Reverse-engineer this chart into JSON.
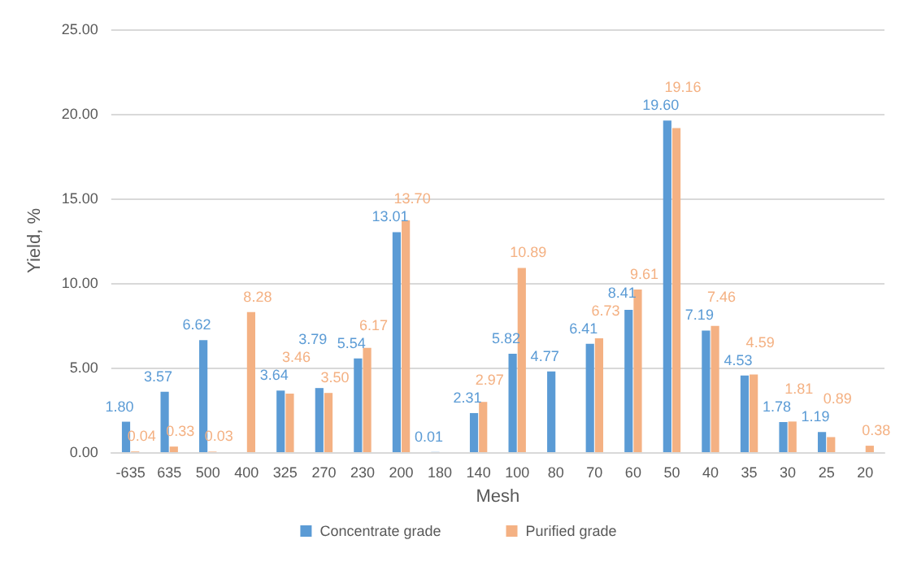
{
  "chart_data": {
    "type": "bar",
    "xlabel": "Mesh",
    "ylabel": "Yield, %",
    "categories": [
      "-635",
      "635",
      "500",
      "400",
      "325",
      "270",
      "230",
      "200",
      "180",
      "140",
      "100",
      "80",
      "70",
      "60",
      "50",
      "40",
      "35",
      "30",
      "25",
      "20"
    ],
    "series": [
      {
        "name": "Concentrate grade",
        "color": "#5b9bd5",
        "values": [
          1.8,
          3.57,
          6.62,
          null,
          3.64,
          3.79,
          5.54,
          13.01,
          0.01,
          2.31,
          5.82,
          4.77,
          6.41,
          8.41,
          19.6,
          7.19,
          4.53,
          1.78,
          1.19,
          null
        ],
        "value_labels": [
          "1.80",
          "3.57",
          "6.62",
          null,
          "3.64",
          "3.79",
          "5.54",
          "13.01",
          "0.01",
          "2.31",
          "5.82",
          "4.77",
          "6.41",
          "8.41",
          "19.60",
          "7.19",
          "4.53",
          "1.78",
          "1.19",
          null
        ]
      },
      {
        "name": "Purified grade",
        "color": "#f4b183",
        "values": [
          0.04,
          0.33,
          0.03,
          8.28,
          3.46,
          3.5,
          6.17,
          13.7,
          null,
          2.97,
          10.89,
          null,
          6.73,
          9.61,
          19.16,
          7.46,
          4.59,
          1.81,
          0.89,
          0.38
        ],
        "value_labels": [
          "0.04",
          "0.33",
          "0.03",
          "8.28",
          "3.46",
          "3.50",
          "6.17",
          "13.70",
          null,
          "2.97",
          "10.89",
          null,
          "6.73",
          "9.61",
          "19.16",
          "7.46",
          "4.59",
          "1.81",
          "0.89",
          "0.38"
        ]
      }
    ],
    "ylim": [
      0,
      25
    ],
    "yticks": [
      {
        "value": 0,
        "label": "0.00"
      },
      {
        "value": 5,
        "label": "5.00"
      },
      {
        "value": 10,
        "label": "10.00"
      },
      {
        "value": 15,
        "label": "15.00"
      },
      {
        "value": 20,
        "label": "20.00"
      },
      {
        "value": 25,
        "label": "25.00"
      }
    ],
    "grid": "y",
    "legend": "bottom"
  }
}
